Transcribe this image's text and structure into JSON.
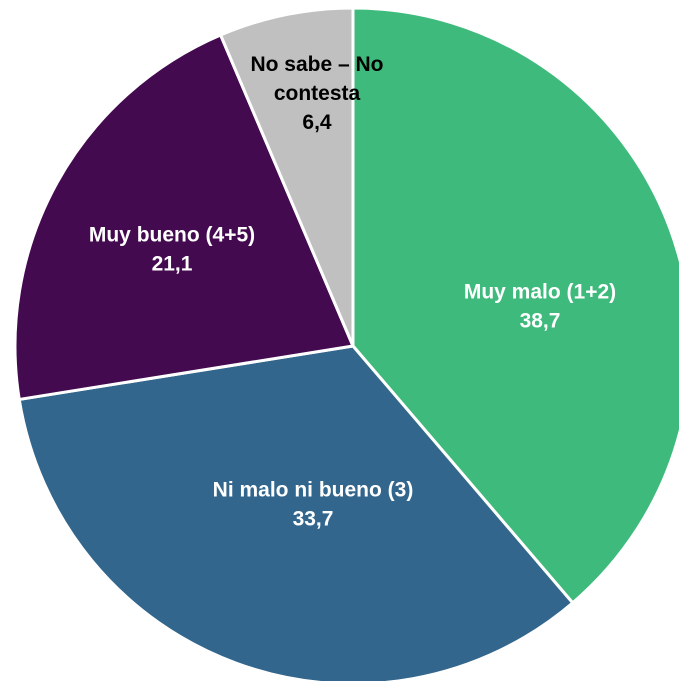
{
  "chart_data": {
    "type": "pie",
    "title": "",
    "start_angle_deg": 0,
    "direction": "clockwise",
    "colors": {
      "label_light": "#ffffff",
      "label_dark": "#000000",
      "border": "#ffffff"
    },
    "slices": [
      {
        "label": "Muy malo (1+2)",
        "value": 38.7,
        "value_label": "38,7",
        "color": "#3dba7c",
        "label_color": "#ffffff",
        "label_lines": [
          "Muy malo (1+2)"
        ]
      },
      {
        "label": "Ni malo ni bueno (3)",
        "value": 33.7,
        "value_label": "33,7",
        "color": "#33668c",
        "label_color": "#ffffff",
        "label_lines": [
          "Ni malo ni bueno (3)"
        ]
      },
      {
        "label": "Muy bueno (4+5)",
        "value": 21.1,
        "value_label": "21,1",
        "color": "#440a4f",
        "label_color": "#ffffff",
        "label_lines": [
          "Muy bueno (4+5)"
        ]
      },
      {
        "label": "No sabe – No contesta",
        "value": 6.4,
        "value_label": "6,4",
        "color": "#c0c0c0",
        "label_color": "#000000",
        "label_lines": [
          "No sabe – No",
          "contesta"
        ]
      }
    ]
  }
}
